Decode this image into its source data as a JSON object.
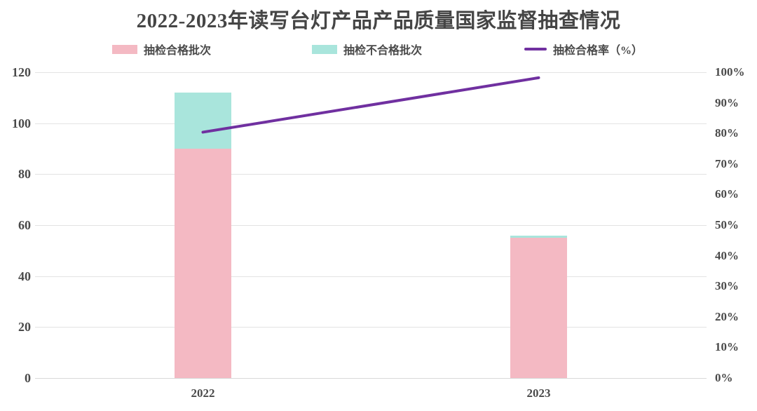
{
  "title": "2022-2023年读写台灯产品产品质量国家监督抽查情况",
  "legend": [
    {
      "label": "抽检合格批次",
      "color": "#f4b9c3",
      "type": "box"
    },
    {
      "label": "抽检不合格批次",
      "color": "#a9e5dc",
      "type": "box"
    },
    {
      "label": "抽检合格率（%）",
      "color": "#7030a0",
      "type": "line"
    }
  ],
  "chart_data": {
    "type": "bar",
    "subtype": "stacked-bars-with-line",
    "categories": [
      "2022",
      "2023"
    ],
    "series": [
      {
        "name": "抽检合格批次",
        "type": "bar",
        "axis": "left",
        "color": "#f4b9c3",
        "values": [
          90,
          55
        ]
      },
      {
        "name": "抽检不合格批次",
        "type": "bar",
        "axis": "left",
        "color": "#a9e5dc",
        "values": [
          22,
          1
        ]
      },
      {
        "name": "抽检合格率（%）",
        "type": "line",
        "axis": "right",
        "color": "#7030a0",
        "values": [
          80.4,
          98.2
        ]
      }
    ],
    "totals": [
      112,
      56
    ],
    "title": "2022-2023年读写台灯产品产品质量国家监督抽查情况",
    "xlabel": "",
    "ylabel_left": "",
    "ylabel_right": "",
    "left_axis": {
      "min": 0,
      "max": 120,
      "step": 20,
      "ticks": [
        "0",
        "20",
        "40",
        "60",
        "80",
        "100",
        "120"
      ]
    },
    "right_axis": {
      "min": 0,
      "max": 100,
      "step": 10,
      "ticks": [
        "0%",
        "10%",
        "20%",
        "30%",
        "40%",
        "50%",
        "60%",
        "70%",
        "80%",
        "90%",
        "100%"
      ]
    },
    "grid": true,
    "legend_position": "top"
  },
  "colors": {
    "background": "#ffffff",
    "text": "#4a4a4a",
    "gridline": "#e3e3e3",
    "bar_qualified": "#f4b9c3",
    "bar_unqualified": "#a9e5dc",
    "rate_line": "#7030a0"
  }
}
